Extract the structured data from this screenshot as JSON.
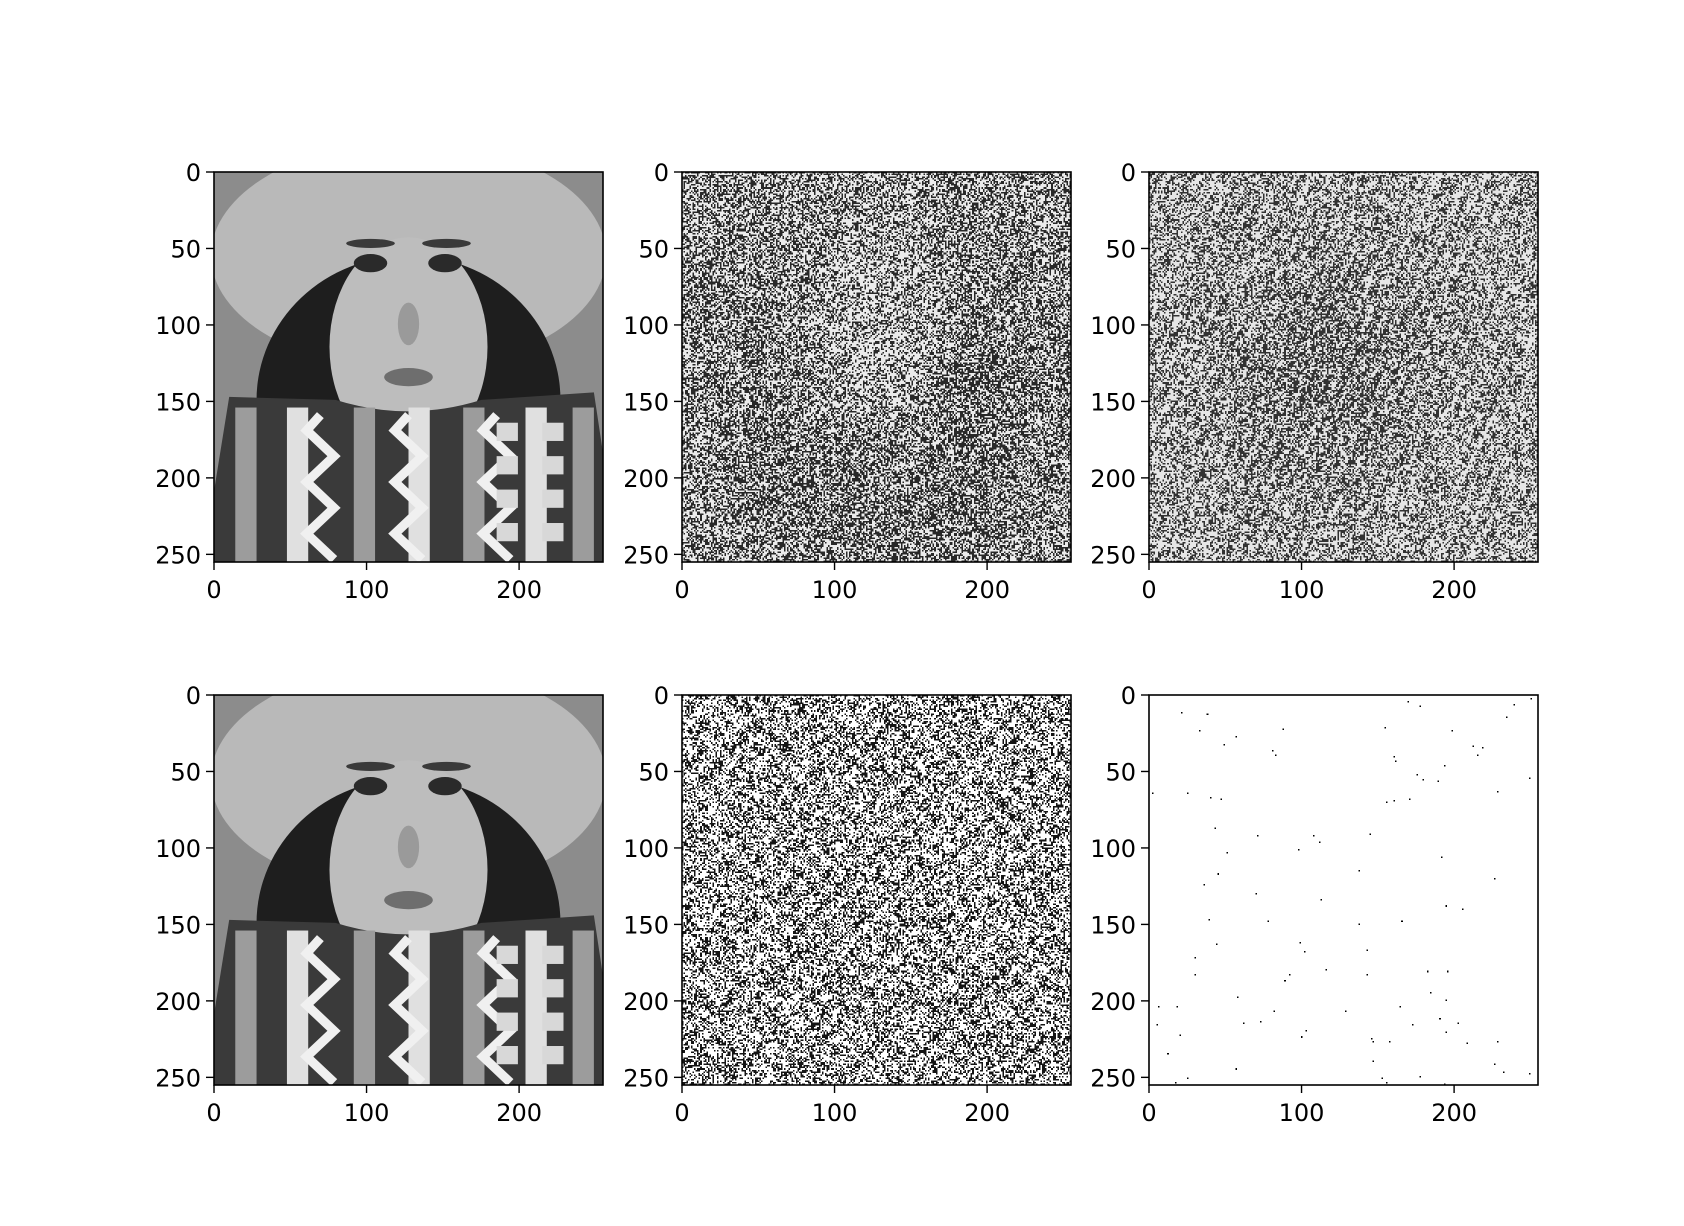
{
  "chart_data": {
    "type": "image-grid",
    "layout": {
      "rows": 2,
      "cols": 3
    },
    "panels": [
      {
        "id": "original-top",
        "content": "grayscale photo of woman in knit hat and patterned scarf",
        "style": "photo",
        "xlim": [
          0,
          255
        ],
        "ylim": [
          255,
          0
        ],
        "xticks": [
          0,
          100,
          200
        ],
        "yticks": [
          0,
          50,
          100,
          150,
          200,
          250
        ]
      },
      {
        "id": "ghost-face",
        "content": "noisy dithered reconstruction showing faint face outline",
        "style": "ghost",
        "xlim": [
          0,
          255
        ],
        "ylim": [
          255,
          0
        ],
        "xticks": [
          0,
          100,
          200
        ],
        "yticks": [
          0,
          50,
          100,
          150,
          200,
          250
        ]
      },
      {
        "id": "faint-texture",
        "content": "very noisy reconstruction with faint texture",
        "style": "faint",
        "xlim": [
          0,
          255
        ],
        "ylim": [
          255,
          0
        ],
        "xticks": [
          0,
          100,
          200
        ],
        "yticks": [
          0,
          50,
          100,
          150,
          200,
          250
        ]
      },
      {
        "id": "original-bottom",
        "content": "grayscale photo of woman in knit hat and patterned scarf",
        "style": "photo",
        "xlim": [
          0,
          255
        ],
        "ylim": [
          255,
          0
        ],
        "xticks": [
          0,
          100,
          200
        ],
        "yticks": [
          0,
          50,
          100,
          150,
          200,
          250
        ]
      },
      {
        "id": "dense-noise",
        "content": "dense black and white noise pattern",
        "style": "noise",
        "xlim": [
          0,
          255
        ],
        "ylim": [
          255,
          0
        ],
        "xticks": [
          0,
          100,
          200
        ],
        "yticks": [
          0,
          50,
          100,
          150,
          200,
          250
        ]
      },
      {
        "id": "sparse-dots",
        "content": "mostly white with sparse black dots",
        "style": "sparse",
        "xlim": [
          0,
          255
        ],
        "ylim": [
          255,
          0
        ],
        "xticks": [
          0,
          100,
          200
        ],
        "yticks": [
          0,
          50,
          100,
          150,
          200,
          250
        ]
      }
    ]
  }
}
